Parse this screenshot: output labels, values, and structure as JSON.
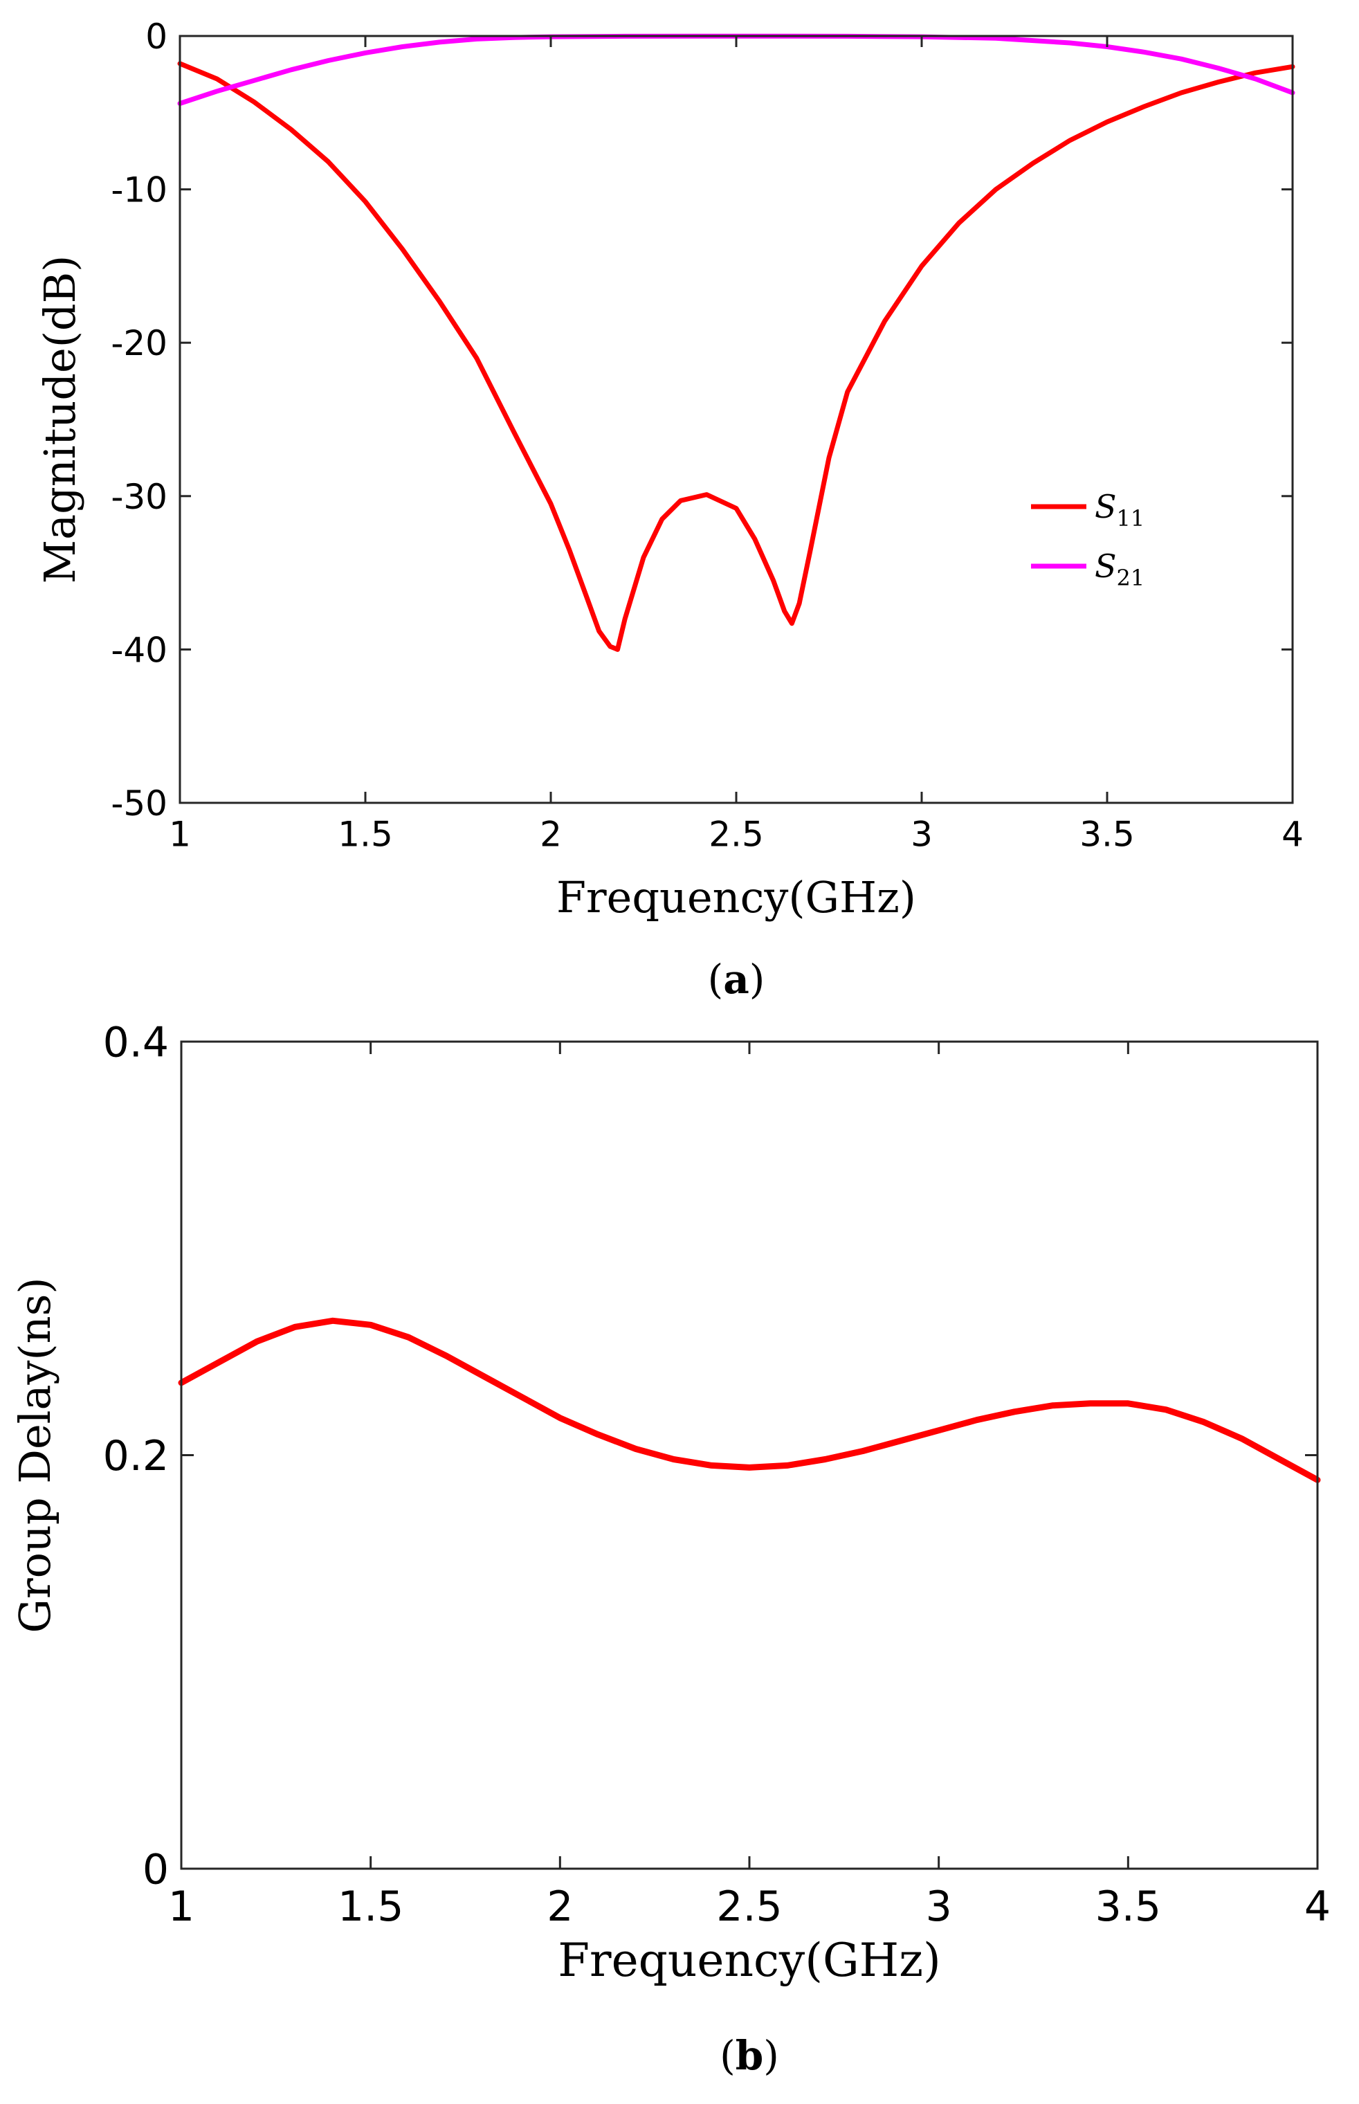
{
  "chart_data": [
    {
      "type": "line",
      "panel": "a",
      "caption_bold": "a",
      "xlabel": "Frequency(GHz)",
      "ylabel": "Magnitude(dB)",
      "xlim": [
        1,
        4
      ],
      "ylim": [
        -50,
        0
      ],
      "xticks": [
        1,
        1.5,
        2,
        2.5,
        3,
        3.5,
        4
      ],
      "yticks": [
        0,
        -10,
        -20,
        -30,
        -40,
        -50
      ],
      "grid": false,
      "legend_position": "right-middle",
      "series": [
        {
          "name": "S11",
          "symbol": "S",
          "subscript": "11",
          "color": "#ff0000",
          "x": [
            1.0,
            1.1,
            1.2,
            1.3,
            1.4,
            1.5,
            1.6,
            1.7,
            1.8,
            1.9,
            2.0,
            2.05,
            2.1,
            2.13,
            2.16,
            2.18,
            2.2,
            2.25,
            2.3,
            2.35,
            2.42,
            2.5,
            2.55,
            2.6,
            2.63,
            2.65,
            2.67,
            2.7,
            2.75,
            2.8,
            2.9,
            3.0,
            3.1,
            3.2,
            3.3,
            3.4,
            3.5,
            3.6,
            3.7,
            3.8,
            3.9,
            4.0
          ],
          "y": [
            -1.8,
            -2.8,
            -4.3,
            -6.1,
            -8.2,
            -10.8,
            -13.9,
            -17.3,
            -21.0,
            -25.8,
            -30.5,
            -33.5,
            -36.8,
            -38.8,
            -39.8,
            -40.0,
            -38.0,
            -34.0,
            -31.5,
            -30.3,
            -29.9,
            -30.8,
            -32.8,
            -35.5,
            -37.5,
            -38.3,
            -37.0,
            -33.5,
            -27.5,
            -23.2,
            -18.6,
            -15.0,
            -12.2,
            -10.0,
            -8.3,
            -6.8,
            -5.6,
            -4.6,
            -3.7,
            -3.0,
            -2.4,
            -2.0
          ]
        },
        {
          "name": "S21",
          "symbol": "S",
          "subscript": "21",
          "color": "#ff00ff",
          "x": [
            1.0,
            1.1,
            1.2,
            1.3,
            1.4,
            1.5,
            1.6,
            1.7,
            1.8,
            1.9,
            2.0,
            2.2,
            2.4,
            2.6,
            2.8,
            3.0,
            3.2,
            3.4,
            3.5,
            3.6,
            3.7,
            3.8,
            3.9,
            4.0
          ],
          "y": [
            -4.4,
            -3.6,
            -2.9,
            -2.2,
            -1.6,
            -1.1,
            -0.7,
            -0.4,
            -0.2,
            -0.1,
            -0.05,
            -0.02,
            -0.01,
            -0.01,
            -0.02,
            -0.05,
            -0.15,
            -0.45,
            -0.7,
            -1.05,
            -1.5,
            -2.1,
            -2.8,
            -3.7
          ]
        }
      ]
    },
    {
      "type": "line",
      "panel": "b",
      "caption_bold": "b",
      "xlabel": "Frequency(GHz)",
      "ylabel": "Group Delay(ns)",
      "xlim": [
        1,
        4
      ],
      "ylim": [
        0,
        0.4
      ],
      "xticks": [
        1,
        1.5,
        2,
        2.5,
        3,
        3.5,
        4
      ],
      "yticks": [
        0,
        0.2,
        0.4
      ],
      "grid": false,
      "series": [
        {
          "name": "Group Delay",
          "color": "#ff0000",
          "x": [
            1.0,
            1.1,
            1.2,
            1.3,
            1.4,
            1.5,
            1.6,
            1.7,
            1.8,
            1.9,
            2.0,
            2.1,
            2.2,
            2.3,
            2.4,
            2.5,
            2.6,
            2.7,
            2.8,
            2.9,
            3.0,
            3.1,
            3.2,
            3.3,
            3.4,
            3.5,
            3.6,
            3.7,
            3.8,
            3.9,
            4.0
          ],
          "y": [
            0.235,
            0.245,
            0.255,
            0.262,
            0.265,
            0.263,
            0.257,
            0.248,
            0.238,
            0.228,
            0.218,
            0.21,
            0.203,
            0.198,
            0.195,
            0.194,
            0.195,
            0.198,
            0.202,
            0.207,
            0.212,
            0.217,
            0.221,
            0.224,
            0.225,
            0.225,
            0.222,
            0.216,
            0.208,
            0.198,
            0.188
          ]
        }
      ]
    }
  ]
}
